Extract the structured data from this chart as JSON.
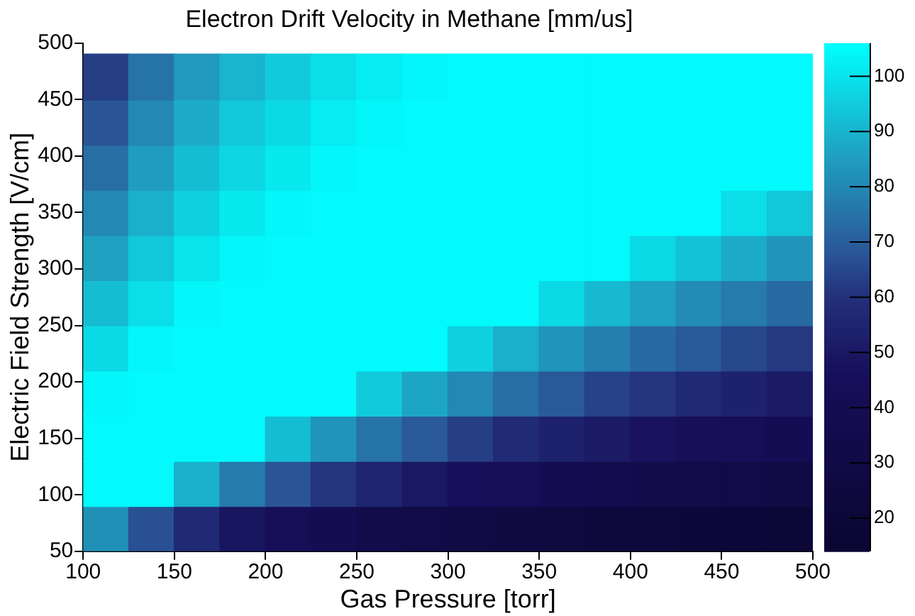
{
  "chart_data": {
    "type": "scatter",
    "title": "Electron Drift Velocity in Methane [mm/us]",
    "xlabel": "Gas Pressure [torr]",
    "ylabel": "Electric Field Strength [V/cm]",
    "marker": "square",
    "x": [
      112.5,
      137.5,
      162.5,
      187.5,
      212.5,
      237.5,
      262.5,
      287.5,
      312.5,
      337.5,
      362.5,
      387.5,
      412.5,
      437.5,
      462.5,
      487.5,
      112.5,
      137.5,
      162.5,
      187.5,
      212.5,
      237.5,
      262.5,
      287.5,
      312.5,
      337.5,
      362.5,
      387.5,
      412.5,
      437.5,
      462.5,
      487.5,
      112.5,
      137.5,
      162.5,
      187.5,
      212.5,
      237.5,
      262.5,
      287.5,
      312.5,
      337.5,
      362.5,
      387.5,
      412.5,
      437.5,
      462.5,
      487.5,
      112.5,
      137.5,
      162.5,
      187.5,
      212.5,
      237.5,
      262.5,
      287.5,
      312.5,
      337.5,
      362.5,
      387.5,
      412.5,
      437.5,
      462.5,
      487.5,
      112.5,
      137.5,
      162.5,
      187.5,
      212.5,
      237.5,
      262.5,
      287.5,
      312.5,
      337.5,
      362.5,
      387.5,
      412.5,
      437.5,
      462.5,
      487.5,
      112.5,
      137.5,
      162.5,
      187.5,
      212.5,
      237.5,
      262.5,
      287.5,
      312.5,
      337.5,
      362.5,
      387.5,
      412.5,
      437.5,
      462.5,
      487.5,
      112.5,
      137.5,
      162.5,
      187.5,
      212.5,
      237.5,
      262.5,
      287.5,
      312.5,
      337.5,
      362.5,
      387.5,
      412.5,
      437.5,
      462.5,
      487.5,
      112.5,
      137.5,
      162.5,
      187.5,
      212.5,
      237.5,
      262.5,
      287.5,
      312.5,
      337.5,
      362.5,
      387.5,
      412.5,
      437.5,
      462.5,
      487.5,
      112.5,
      137.5,
      162.5,
      187.5,
      212.5,
      237.5,
      262.5,
      287.5,
      312.5,
      337.5,
      362.5,
      387.5,
      412.5,
      437.5,
      462.5,
      487.5,
      112.5,
      137.5,
      162.5,
      187.5,
      212.5,
      237.5,
      262.5,
      287.5,
      312.5,
      337.5,
      362.5,
      387.5,
      412.5,
      437.5,
      462.5,
      487.5,
      112.5,
      137.5,
      162.5,
      187.5,
      212.5,
      237.5,
      262.5,
      287.5,
      312.5,
      337.5,
      362.5,
      387.5,
      412.5,
      437.5,
      462.5,
      487.5
    ],
    "values": [
      70,
      70,
      70,
      70,
      70,
      70,
      70,
      70,
      70,
      70,
      70,
      70,
      70,
      70,
      70,
      70,
      110,
      110,
      110,
      110,
      110,
      110,
      110,
      110,
      110,
      110,
      110,
      110,
      110,
      110,
      110,
      110,
      150,
      150,
      150,
      150,
      150,
      150,
      150,
      150,
      150,
      150,
      150,
      150,
      150,
      150,
      150,
      150,
      190,
      190,
      190,
      190,
      190,
      190,
      190,
      190,
      190,
      190,
      190,
      190,
      190,
      190,
      190,
      190,
      230,
      230,
      230,
      230,
      230,
      230,
      230,
      230,
      230,
      230,
      230,
      230,
      230,
      230,
      230,
      230,
      270,
      270,
      270,
      270,
      270,
      270,
      270,
      270,
      270,
      270,
      270,
      270,
      270,
      270,
      270,
      270,
      310,
      310,
      310,
      310,
      310,
      310,
      310,
      310,
      310,
      310,
      310,
      310,
      310,
      310,
      310,
      310,
      350,
      350,
      350,
      350,
      350,
      350,
      350,
      350,
      350,
      350,
      350,
      350,
      350,
      350,
      350,
      350,
      390,
      390,
      390,
      390,
      390,
      390,
      390,
      390,
      390,
      390,
      390,
      390,
      390,
      390,
      390,
      390,
      430,
      430,
      430,
      430,
      430,
      430,
      430,
      430,
      430,
      430,
      430,
      430,
      430,
      430,
      430,
      430,
      470,
      470,
      470,
      470,
      470,
      470,
      470,
      470,
      470,
      470,
      470,
      470,
      470,
      470,
      470,
      470
    ],
    "cvalues": [
      82,
      67,
      57,
      49,
      44,
      39,
      35,
      32,
      30,
      28,
      26,
      24,
      23,
      22,
      20,
      19,
      105,
      105,
      89,
      77,
      68,
      61,
      55,
      50,
      46,
      43,
      40,
      38,
      35,
      33,
      32,
      30,
      105,
      105,
      105,
      105,
      92,
      83,
      75,
      69,
      63,
      58,
      54,
      51,
      48,
      45,
      43,
      41,
      104,
      105,
      105,
      105,
      105,
      105,
      95,
      87,
      80,
      74,
      69,
      64,
      61,
      57,
      54,
      51,
      98,
      104,
      105,
      105,
      105,
      105,
      105,
      105,
      96,
      89,
      83,
      78,
      73,
      69,
      65,
      62,
      92,
      99,
      104,
      105,
      105,
      105,
      105,
      105,
      105,
      105,
      98,
      91,
      86,
      81,
      77,
      73,
      86,
      94,
      100,
      104,
      105,
      105,
      105,
      105,
      105,
      105,
      105,
      105,
      98,
      93,
      88,
      83,
      80,
      89,
      96,
      101,
      104,
      105,
      105,
      105,
      105,
      105,
      105,
      105,
      105,
      105,
      99,
      94,
      74,
      85,
      92,
      97,
      101,
      104,
      105,
      105,
      105,
      105,
      105,
      105,
      105,
      105,
      105,
      105,
      68,
      80,
      88,
      94,
      98,
      102,
      104,
      105,
      105,
      105,
      105,
      105,
      105,
      105,
      105,
      105,
      63,
      75,
      84,
      90,
      95,
      99,
      102,
      104,
      105,
      105,
      105,
      105,
      105,
      105,
      105,
      105
    ],
    "xlim": [
      100,
      500
    ],
    "xticks": [
      100,
      150,
      200,
      250,
      300,
      350,
      400,
      450,
      500
    ],
    "ylim": [
      50,
      500
    ],
    "yticks": [
      50,
      100,
      150,
      200,
      250,
      300,
      350,
      400,
      450,
      500
    ],
    "clim": [
      14,
      106
    ],
    "cticks": [
      20,
      30,
      40,
      50,
      60,
      70,
      80,
      90,
      100
    ]
  }
}
